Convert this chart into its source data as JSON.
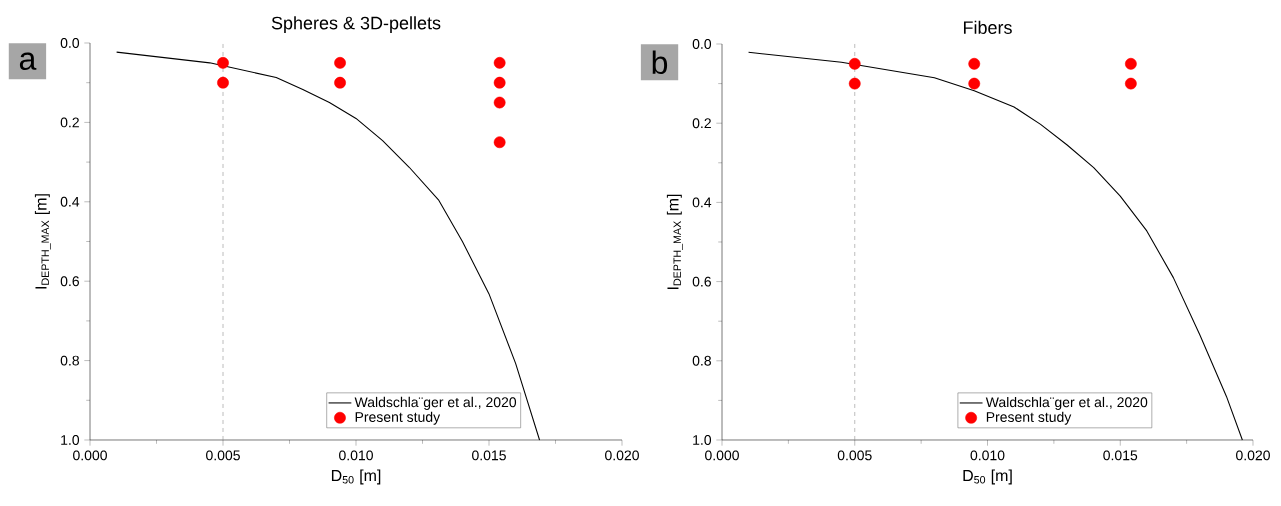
{
  "chart_data": [
    {
      "type": "line",
      "title": "Spheres & 3D-pellets",
      "xlabel": "D$_{50}$ [m]",
      "ylabel": "I$_{DEPTH_MAX}$ [m]",
      "annotations": [
        "a"
      ],
      "xlim": [
        0,
        0.02
      ],
      "ylim": [
        1.0,
        0.0
      ],
      "xticks": [
        {
          "value": 0,
          "label": "0.000"
        },
        {
          "value": 0.005,
          "label": "0.005"
        },
        {
          "value": 0.01,
          "label": "0.010"
        },
        {
          "value": 0.015,
          "label": "0.015"
        },
        {
          "value": 0.02,
          "label": "0.020"
        }
      ],
      "yticks": [
        {
          "value": 0,
          "label": "0.0"
        },
        {
          "value": 0.2,
          "label": "0.2"
        },
        {
          "value": 0.4,
          "label": "0.4"
        },
        {
          "value": 0.6,
          "label": "0.6"
        },
        {
          "value": 0.8,
          "label": "0.8"
        },
        {
          "value": 1.0,
          "label": "1.0"
        }
      ],
      "legend": "bottom right",
      "ref_lines": [
        {
          "axis": "x",
          "value": 0.005,
          "color": "#808080",
          "line_style": "dashed"
        }
      ],
      "series": [
        {
          "name": "Waldschla¨ger et al., 2020",
          "color": "#000000",
          "line_style": "solid",
          "x": [
            0.001,
            0.0045,
            0.007,
            0.008,
            0.009,
            0.01,
            0.011,
            0.012,
            0.0131,
            0.014,
            0.015,
            0.016,
            0.0169
          ],
          "values": [
            0.023,
            0.05,
            0.087,
            0.117,
            0.15,
            0.19,
            0.246,
            0.313,
            0.395,
            0.5,
            0.632,
            0.807,
            1.0
          ]
        },
        {
          "name": "Present study",
          "type": "scatter",
          "marker": "circle",
          "color": "#ff0000",
          "x": [
            0.005,
            0.005,
            0.0094,
            0.0094,
            0.0154,
            0.0154,
            0.0154,
            0.0154
          ],
          "values": [
            0.05,
            0.1,
            0.05,
            0.1,
            0.05,
            0.1,
            0.15,
            0.25
          ]
        }
      ]
    },
    {
      "type": "line",
      "title": "Fibers",
      "xlabel": "D$_{50}$ [m]",
      "ylabel": "I$_{DEPTH_MAX}$ [m]",
      "annotations": [
        "b"
      ],
      "xlim": [
        0,
        0.02
      ],
      "ylim": [
        1.0,
        0.0
      ],
      "xticks": [
        {
          "value": 0,
          "label": "0.000"
        },
        {
          "value": 0.005,
          "label": "0.005"
        },
        {
          "value": 0.01,
          "label": "0.010"
        },
        {
          "value": 0.015,
          "label": "0.015"
        },
        {
          "value": 0.02,
          "label": "0.020"
        }
      ],
      "yticks": [
        {
          "value": 0,
          "label": "0.0"
        },
        {
          "value": 0.2,
          "label": "0.2"
        },
        {
          "value": 0.4,
          "label": "0.4"
        },
        {
          "value": 0.6,
          "label": "0.6"
        },
        {
          "value": 0.8,
          "label": "0.8"
        },
        {
          "value": 1.0,
          "label": "1.0"
        }
      ],
      "legend": "bottom right",
      "ref_lines": [
        {
          "axis": "x",
          "value": 0.005,
          "color": "#808080",
          "line_style": "dashed"
        }
      ],
      "series": [
        {
          "name": "Waldschla¨ger et al., 2020",
          "color": "#000000",
          "line_style": "solid",
          "x": [
            0.001,
            0.0045,
            0.008,
            0.0095,
            0.011,
            0.012,
            0.013,
            0.014,
            0.015,
            0.016,
            0.017,
            0.018,
            0.019,
            0.0196
          ],
          "values": [
            0.021,
            0.046,
            0.085,
            0.118,
            0.159,
            0.203,
            0.255,
            0.312,
            0.384,
            0.472,
            0.59,
            0.735,
            0.89,
            1.0
          ]
        },
        {
          "name": "Present study",
          "type": "scatter",
          "marker": "circle",
          "color": "#ff0000",
          "x": [
            0.005,
            0.005,
            0.0095,
            0.0095,
            0.0154,
            0.0154
          ],
          "values": [
            0.05,
            0.1,
            0.05,
            0.1,
            0.05,
            0.1
          ]
        }
      ]
    }
  ]
}
